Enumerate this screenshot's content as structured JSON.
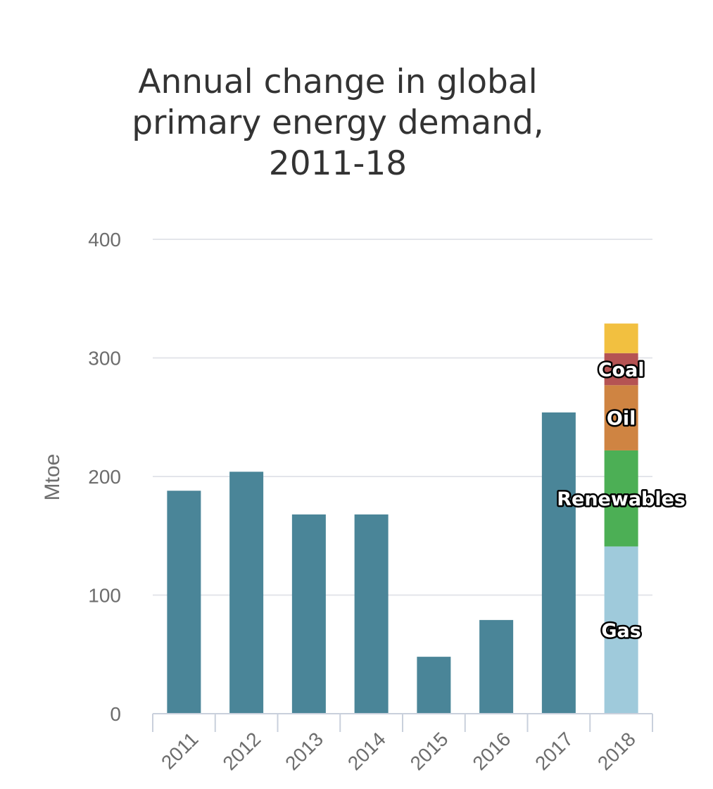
{
  "chart_data": {
    "type": "bar",
    "title_lines": [
      "Annual change in global",
      "primary energy demand,",
      "2011-18"
    ],
    "ylabel": "Mtoe",
    "xlabel": "",
    "ylim": [
      0,
      400
    ],
    "yticks": [
      0,
      100,
      200,
      300,
      400
    ],
    "categories": [
      "2011",
      "2012",
      "2013",
      "2014",
      "2015",
      "2016",
      "2017",
      "2018"
    ],
    "values": [
      188,
      204,
      168,
      168,
      48,
      79,
      254,
      null
    ],
    "bar_color": "#4a8598",
    "grid": true,
    "stacked_category": "2018",
    "stack": [
      {
        "name": "Gas",
        "value": 141,
        "color": "#9fcadb"
      },
      {
        "name": "Renewables",
        "value": 81,
        "color": "#4caf55"
      },
      {
        "name": "Oil",
        "value": 55,
        "color": "#cf8442"
      },
      {
        "name": "Coal",
        "value": 27,
        "color": "#b55353"
      },
      {
        "name": "",
        "value": 25,
        "color": "#f2c040"
      }
    ]
  }
}
